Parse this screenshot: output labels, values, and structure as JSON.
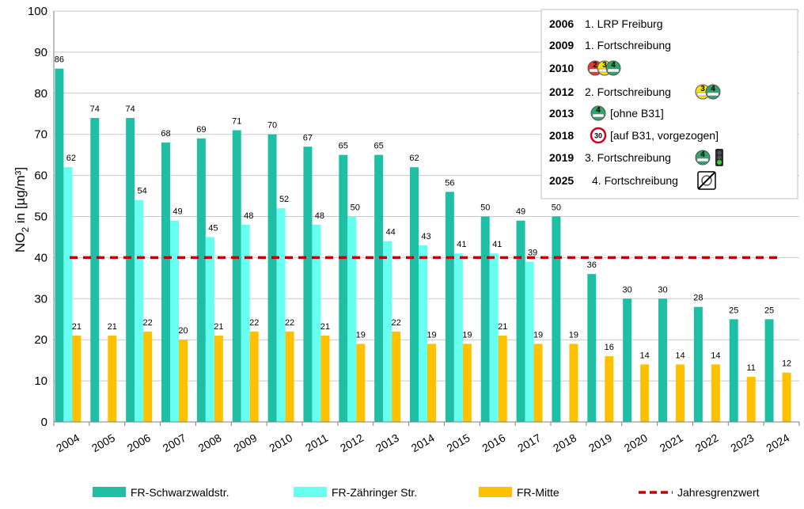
{
  "chart_data": {
    "type": "bar",
    "ylabel_main": "NO",
    "ylabel_sub": "2",
    "ylabel_rest": " in [µg/m³]",
    "ylim": [
      0,
      100
    ],
    "yticks": [
      0,
      10,
      20,
      30,
      40,
      50,
      60,
      70,
      80,
      90,
      100
    ],
    "grid": true,
    "categories": [
      "2004",
      "2005",
      "2006",
      "2007",
      "2008",
      "2009",
      "2010",
      "2011",
      "2012",
      "2013",
      "2014",
      "2015",
      "2016",
      "2017",
      "2018",
      "2019",
      "2020",
      "2021",
      "2022",
      "2023",
      "2024"
    ],
    "series": [
      {
        "name": "FR-Schwarzwaldstr.",
        "color": "#1fbfa6",
        "values": [
          86,
          74,
          74,
          68,
          69,
          71,
          70,
          67,
          65,
          65,
          62,
          56,
          50,
          49,
          50,
          36,
          30,
          30,
          28,
          25,
          25
        ]
      },
      {
        "name": "FR-Zähringer Str.",
        "color": "#66fff0",
        "values": [
          62,
          null,
          54,
          49,
          45,
          48,
          52,
          48,
          50,
          44,
          43,
          41,
          41,
          39,
          null,
          null,
          null,
          null,
          null,
          null,
          null
        ]
      },
      {
        "name": "FR-Mitte",
        "color": "#ffc000",
        "values": [
          21,
          21,
          22,
          20,
          21,
          22,
          22,
          21,
          19,
          22,
          19,
          19,
          21,
          19,
          19,
          16,
          14,
          14,
          14,
          11,
          12
        ]
      }
    ],
    "limit_line": {
      "name": "Jahresgrenzwert",
      "value": 40,
      "color": "#c00000"
    },
    "legend_position": "bottom"
  },
  "infobox": {
    "items": [
      {
        "year": "2006",
        "text": "1. LRP Freiburg",
        "icons": []
      },
      {
        "year": "2009",
        "text": "1. Fortschreibung",
        "icons": []
      },
      {
        "year": "2010",
        "text": "",
        "icons": [
          "red-zone-badge-icon",
          "yellow-zone-badge-icon",
          "green-zone-badge-icon"
        ]
      },
      {
        "year": "2012",
        "text": "2. Fortschreibung",
        "icons": [
          "yellow-zone-badge-icon",
          "green-zone-badge-icon"
        ]
      },
      {
        "year": "2013",
        "text": "[ohne B31]",
        "icons": [
          "green-zone-badge-icon"
        ]
      },
      {
        "year": "2018",
        "text": "[auf B31, vorgezogen]",
        "icons": [
          "speed-limit-30-icon"
        ]
      },
      {
        "year": "2019",
        "text": "3. Fortschreibung",
        "icons": [
          "green-zone-badge-icon",
          "traffic-light-icon"
        ]
      },
      {
        "year": "2025",
        "text": "4. Fortschreibung",
        "icons": [
          "zone-end-sign-icon"
        ]
      }
    ],
    "badge_digits": {
      "red": "2",
      "yellow": "3",
      "green": "4"
    },
    "speed_limit": "30"
  }
}
